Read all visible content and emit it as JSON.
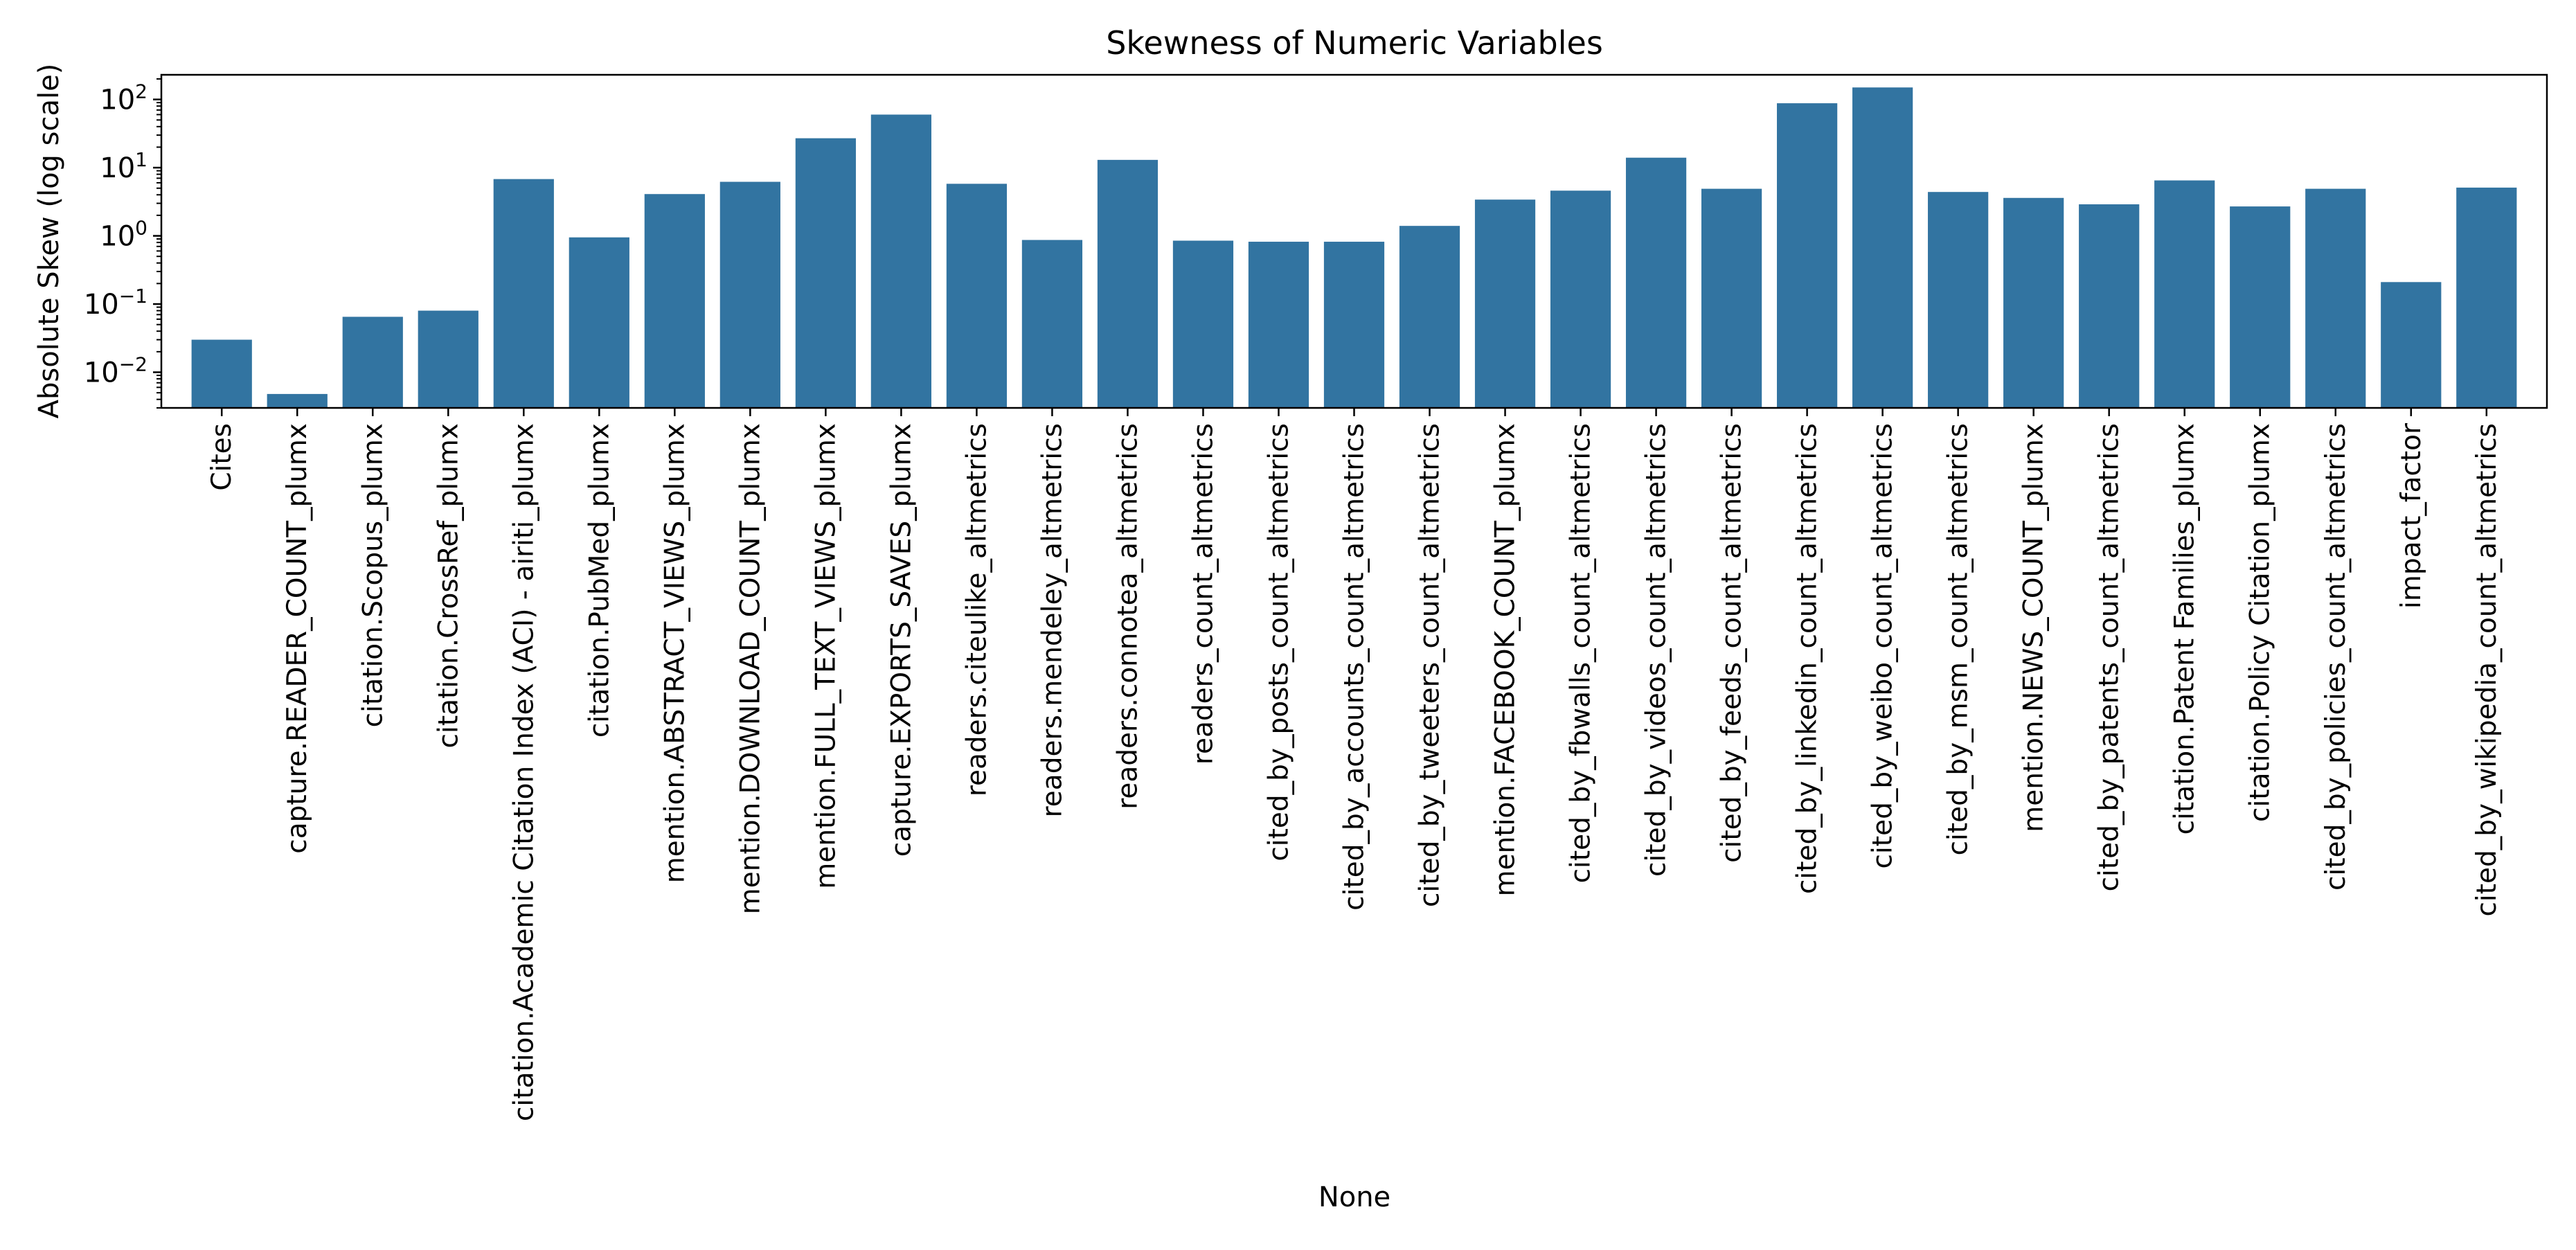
{
  "chart_data": {
    "type": "bar",
    "title": "Skewness of Numeric Variables",
    "xlabel": "None",
    "ylabel": "Absolute Skew (log scale)",
    "yscale": "log",
    "ylim": [
      0.003,
      230
    ],
    "yticks": [
      {
        "value": 0.01,
        "base": "10",
        "exp": "−2"
      },
      {
        "value": 0.1,
        "base": "10",
        "exp": "−1"
      },
      {
        "value": 1,
        "base": "10",
        "exp": "0"
      },
      {
        "value": 10,
        "base": "10",
        "exp": "1"
      },
      {
        "value": 100,
        "base": "10",
        "exp": "2"
      }
    ],
    "grid": false,
    "color": "#3274a1",
    "categories": [
      "Cites",
      "capture.READER_COUNT_plumx",
      "citation.Scopus_plumx",
      "citation.CrossRef_plumx",
      "citation.Academic Citation Index (ACI) - airiti_plumx",
      "citation.PubMed_plumx",
      "mention.ABSTRACT_VIEWS_plumx",
      "mention.DOWNLOAD_COUNT_plumx",
      "mention.FULL_TEXT_VIEWS_plumx",
      "capture.EXPORTS_SAVES_plumx",
      "readers.citeulike_altmetrics",
      "readers.mendeley_altmetrics",
      "readers.connotea_altmetrics",
      "readers_count_altmetrics",
      "cited_by_posts_count_altmetrics",
      "cited_by_accounts_count_altmetrics",
      "cited_by_tweeters_count_altmetrics",
      "mention.FACEBOOK_COUNT_plumx",
      "cited_by_fbwalls_count_altmetrics",
      "cited_by_videos_count_altmetrics",
      "cited_by_feeds_count_altmetrics",
      "cited_by_linkedin_count_altmetrics",
      "cited_by_weibo_count_altmetrics",
      "cited_by_msm_count_altmetrics",
      "mention.NEWS_COUNT_plumx",
      "cited_by_patents_count_altmetrics",
      "citation.Patent Families_plumx",
      "citation.Policy Citation_plumx",
      "cited_by_policies_count_altmetrics",
      "impact_factor",
      "cited_by_wikipedia_count_altmetrics"
    ],
    "values": [
      0.03,
      0.0048,
      0.065,
      0.08,
      6.8,
      0.95,
      4.1,
      6.2,
      27,
      60,
      5.8,
      0.87,
      13,
      0.85,
      0.82,
      0.82,
      1.4,
      3.4,
      4.6,
      14,
      4.9,
      88,
      150,
      4.4,
      3.6,
      2.9,
      6.5,
      2.7,
      4.9,
      0.21,
      5.1
    ]
  }
}
